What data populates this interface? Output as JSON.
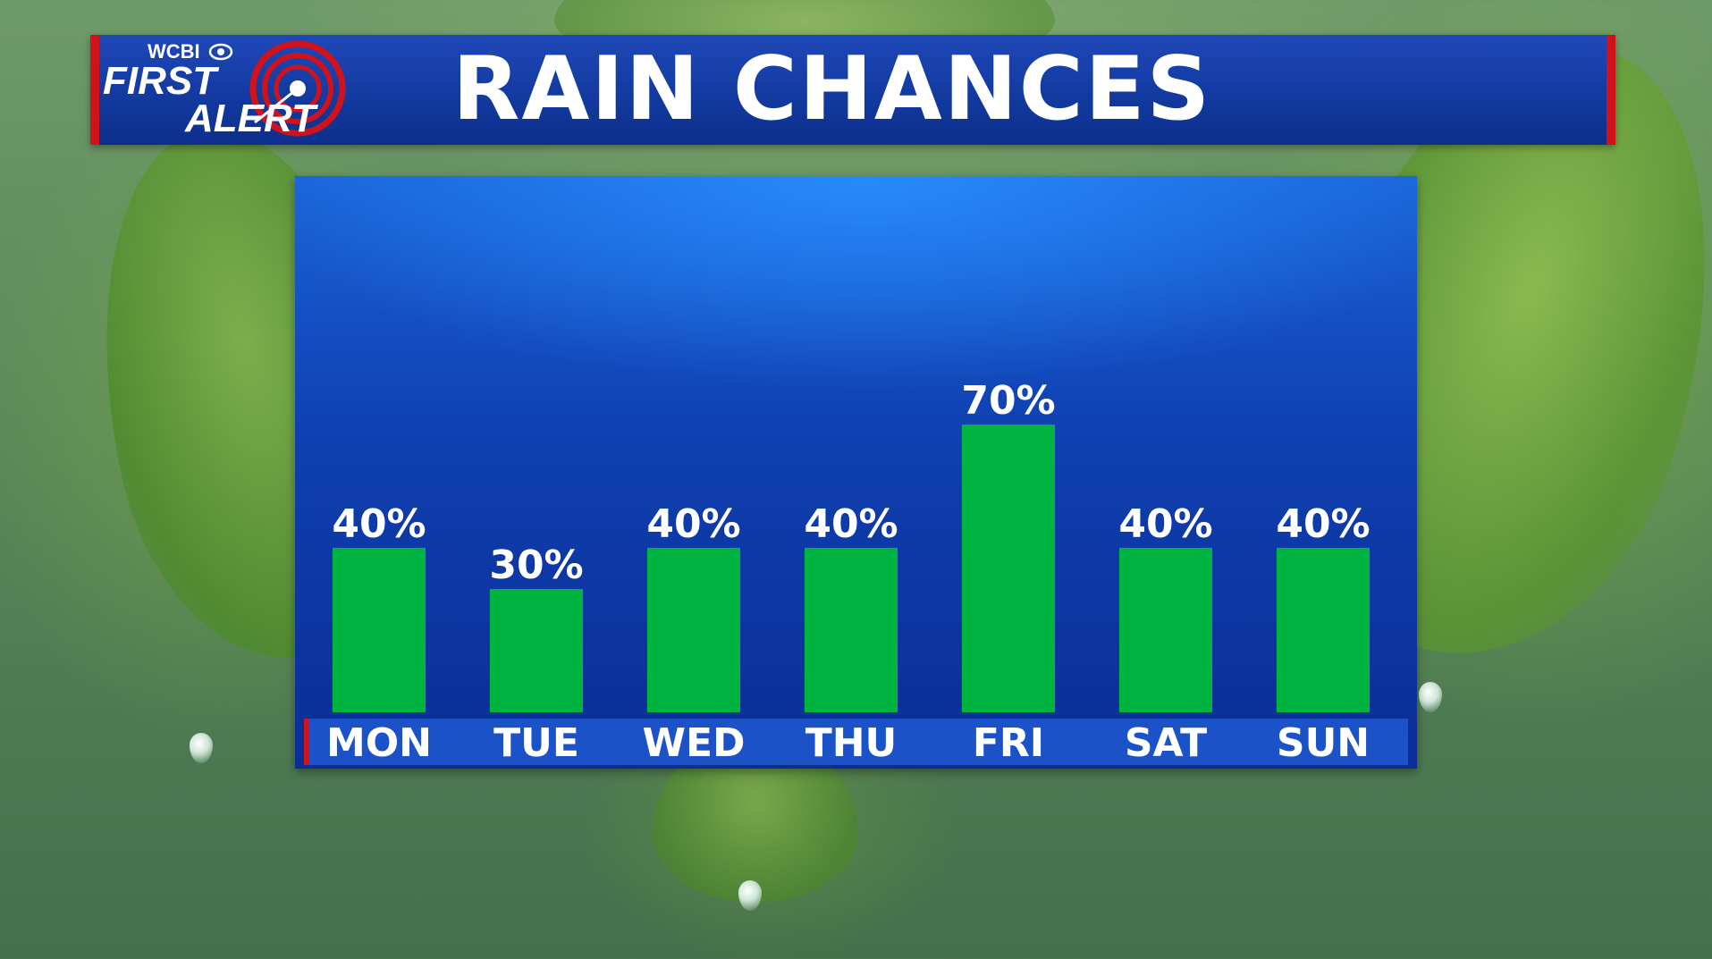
{
  "header": {
    "title": "RAIN CHANCES",
    "logo": {
      "brand": "WCBI",
      "line1": "FIRST",
      "line2": "ALERT",
      "icon": "cbs-eye-icon"
    }
  },
  "colors": {
    "header_blue": "#123aa0",
    "accent_red": "#d1121b",
    "bar_green": "#00b441",
    "label_white": "#ffffff"
  },
  "chart_data": {
    "type": "bar",
    "title": "RAIN CHANCES",
    "categories": [
      "MON",
      "TUE",
      "WED",
      "THU",
      "FRI",
      "SAT",
      "SUN"
    ],
    "values": [
      40,
      30,
      40,
      40,
      70,
      40,
      40
    ],
    "value_labels": [
      "40%",
      "30%",
      "40%",
      "40%",
      "70%",
      "40%",
      "40%"
    ],
    "unit": "%",
    "xlabel": "",
    "ylabel": "",
    "ylim": [
      0,
      100
    ],
    "grid": false,
    "legend": "none"
  }
}
